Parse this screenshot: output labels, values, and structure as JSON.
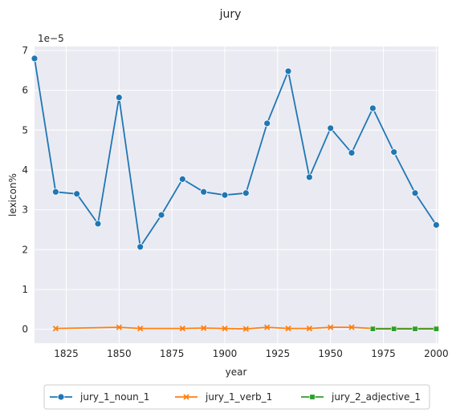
{
  "chart_data": {
    "type": "line",
    "title": "jury",
    "xlabel": "year",
    "ylabel": "lexicon%",
    "y_scale_label": "1e−5",
    "xlim": [
      1810,
      2001
    ],
    "ylim": [
      -0.35,
      7.1
    ],
    "x_ticks": [
      1825,
      1850,
      1875,
      1900,
      1925,
      1950,
      1975,
      2000
    ],
    "y_ticks": [
      0,
      1,
      2,
      3,
      4,
      5,
      6,
      7
    ],
    "grid": true,
    "legend_position": "bottom",
    "series": [
      {
        "name": "jury_1_noun_1",
        "color": "#1f77b4",
        "marker": "circle",
        "x": [
          1810,
          1820,
          1830,
          1840,
          1850,
          1860,
          1870,
          1880,
          1890,
          1900,
          1910,
          1920,
          1930,
          1940,
          1950,
          1960,
          1970,
          1980,
          1990,
          2000
        ],
        "y": [
          6.8,
          3.45,
          3.4,
          2.65,
          5.82,
          2.07,
          2.87,
          3.77,
          3.45,
          3.37,
          3.42,
          5.17,
          6.48,
          3.82,
          5.05,
          4.43,
          5.55,
          4.45,
          3.42,
          2.62
        ]
      },
      {
        "name": "jury_1_verb_1",
        "color": "#ff7f0e",
        "marker": "x",
        "x": [
          1820,
          1850,
          1860,
          1880,
          1890,
          1900,
          1910,
          1920,
          1930,
          1940,
          1950,
          1960,
          1970,
          1980,
          1990,
          2000
        ],
        "y": [
          0.02,
          0.05,
          0.02,
          0.02,
          0.03,
          0.02,
          0.01,
          0.05,
          0.02,
          0.02,
          0.05,
          0.05,
          0.02,
          0.02,
          0.02,
          0.02
        ]
      },
      {
        "name": "jury_2_adjective_1",
        "color": "#2ca02c",
        "marker": "square",
        "x": [
          1970,
          1980,
          1990,
          2000
        ],
        "y": [
          0.01,
          0.01,
          0.01,
          0.01
        ]
      }
    ]
  }
}
